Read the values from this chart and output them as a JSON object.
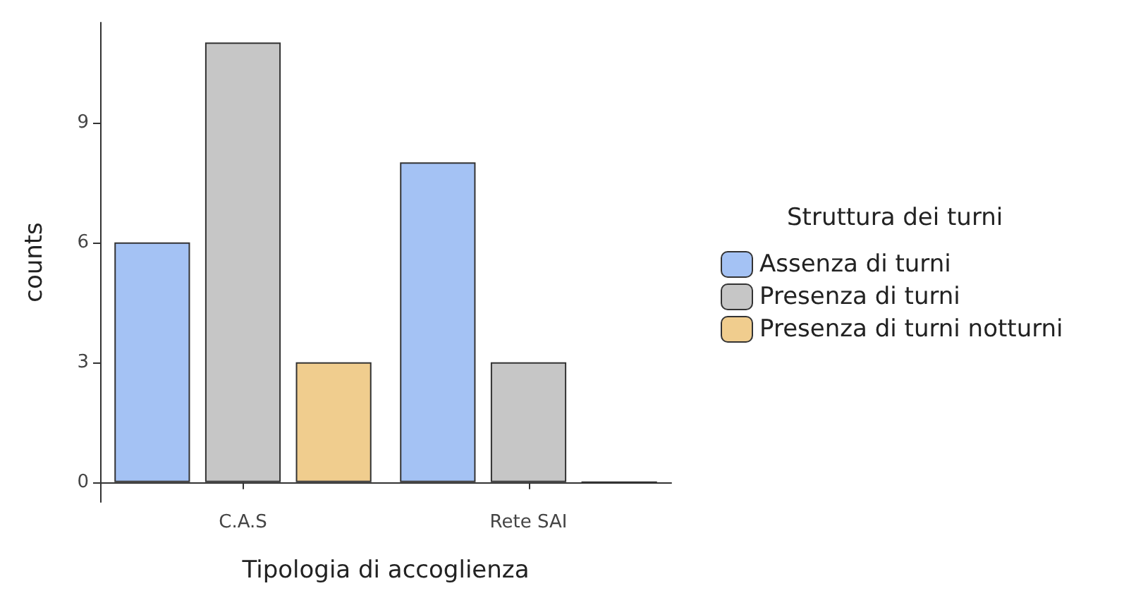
{
  "chart_data": {
    "type": "bar",
    "xlabel": "Tipologia di accoglienza",
    "ylabel": "counts",
    "legend_title": "Struttura dei turni",
    "categories": [
      "C.A.S",
      "Rete SAI"
    ],
    "series": [
      {
        "name": "Assenza di turni",
        "color": "#a4c2f4",
        "values": [
          6,
          8
        ]
      },
      {
        "name": "Presenza di turni",
        "color": "#c6c6c6",
        "values": [
          11,
          3
        ]
      },
      {
        "name": "Presenza di turni notturni",
        "color": "#f0cd8e",
        "values": [
          3,
          0
        ]
      }
    ],
    "ylim": [
      -0.5,
      11.5
    ],
    "yticks": [
      0,
      3,
      6,
      9
    ],
    "grid": false,
    "legend": "right"
  }
}
